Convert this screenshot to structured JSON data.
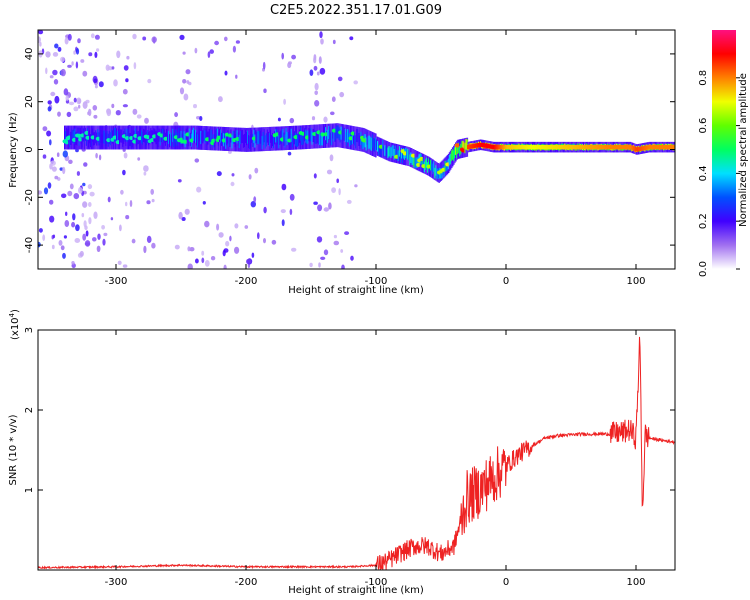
{
  "title": "C2E5.2022.351.17.01.G09",
  "chart_data": [
    {
      "type": "heatmap",
      "xlabel": "Height of straight line (km)",
      "ylabel": "Frequency (Hz)",
      "xlim": [
        -360,
        130
      ],
      "ylim": [
        -50,
        50
      ],
      "xticks": [
        -300,
        -200,
        -100,
        0,
        100
      ],
      "yticks": [
        -40,
        -20,
        0,
        20,
        40
      ],
      "colorbar": {
        "label": "Normalized spectral amplitude",
        "range": [
          0,
          1
        ],
        "ticks": [
          "0.0",
          "0.2",
          "0.4",
          "0.6",
          "0.8"
        ]
      },
      "ridge": {
        "description_values": "center frequency (Hz) of dominant signal vs height (km)",
        "x": [
          -320,
          -280,
          -240,
          -200,
          -160,
          -130,
          -110,
          -90,
          -75,
          -60,
          -52,
          -45,
          -38,
          -30,
          -20,
          -10,
          0,
          20,
          50,
          80,
          95,
          100,
          110,
          130
        ],
        "y": [
          5,
          5,
          5,
          4,
          5,
          6,
          4,
          -1,
          -3,
          -7,
          -10,
          -6,
          0,
          1,
          2,
          1,
          1,
          1,
          1,
          1,
          1,
          0,
          1,
          1
        ],
        "amplitude": [
          0.35,
          0.35,
          0.4,
          0.4,
          0.4,
          0.4,
          0.45,
          0.5,
          0.6,
          0.55,
          0.55,
          0.6,
          0.7,
          0.85,
          0.9,
          0.9,
          0.75,
          0.7,
          0.75,
          0.8,
          0.8,
          0.85,
          0.8,
          0.8
        ]
      }
    },
    {
      "type": "line",
      "xlabel": "Height of straight line (km)",
      "ylabel": "SNR (10 * v/v)",
      "yscale_label": "(x10",
      "yscale_exp": "4",
      "y_multiplier": 10000,
      "xlim": [
        -360,
        130
      ],
      "ylim": [
        0,
        3
      ],
      "xticks": [
        -300,
        -200,
        -100,
        0,
        100
      ],
      "yticks": [
        1,
        2,
        3
      ],
      "series": [
        {
          "color": "#ee2222",
          "x": [
            -360,
            -300,
            -250,
            -200,
            -150,
            -120,
            -100,
            -90,
            -80,
            -70,
            -60,
            -50,
            -40,
            -30,
            -20,
            -10,
            0,
            10,
            20,
            30,
            40,
            60,
            80,
            90,
            95,
            100,
            103,
            105,
            107,
            110,
            120,
            130
          ],
          "y": [
            0.03,
            0.04,
            0.06,
            0.04,
            0.04,
            0.04,
            0.06,
            0.12,
            0.22,
            0.3,
            0.3,
            0.2,
            0.3,
            0.9,
            1.0,
            1.15,
            1.3,
            1.45,
            1.55,
            1.65,
            1.68,
            1.7,
            1.7,
            1.72,
            1.75,
            1.65,
            2.9,
            0.7,
            1.7,
            1.65,
            1.62,
            1.6
          ]
        }
      ]
    }
  ]
}
